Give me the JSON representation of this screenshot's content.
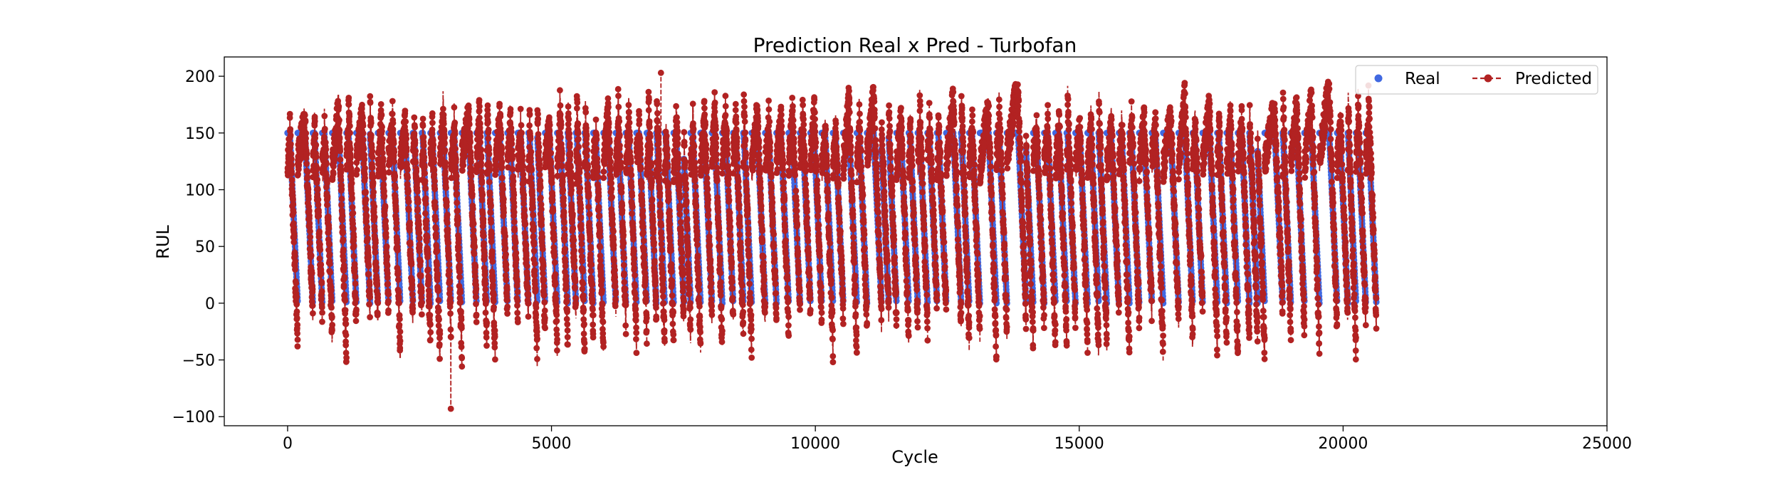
{
  "chart_data": {
    "type": "line",
    "title": "Prediction Real x Pred - Turbofan",
    "xlabel": "Cycle",
    "ylabel": "RUL",
    "xlim": [
      -1200,
      25000
    ],
    "ylim": [
      -108,
      217
    ],
    "xticks": [
      0,
      5000,
      10000,
      15000,
      20000,
      25000
    ],
    "xtick_labels": [
      "0",
      "5000",
      "10000",
      "15000",
      "20000",
      "25000"
    ],
    "yticks": [
      -100,
      -50,
      0,
      50,
      100,
      150,
      200
    ],
    "ytick_labels": [
      "−100",
      "−50",
      "0",
      "50",
      "100",
      "150",
      "200"
    ],
    "grid": false,
    "legend_position": "top-right",
    "series": [
      {
        "name": "Real",
        "style": "markers",
        "color": "#4169e1",
        "cap": 150,
        "unit_lengths": [
          192,
          287,
          179,
          189,
          269,
          188,
          259,
          150,
          201,
          222,
          240,
          170,
          163,
          180,
          207,
          209,
          276,
          195,
          158,
          234,
          195,
          202,
          168,
          147,
          230,
          199,
          156,
          165,
          163,
          194,
          234,
          191,
          200,
          195,
          181,
          158,
          170,
          194,
          128,
          188,
          216,
          196,
          207,
          192,
          158,
          256,
          214,
          231,
          215,
          198,
          213,
          213,
          195,
          257,
          193,
          275,
          137,
          147,
          231,
          172,
          185,
          180,
          174,
          283,
          153,
          202,
          313,
          199,
          362,
          137,
          208,
          213,
          213,
          166,
          229,
          210,
          154,
          231,
          199,
          185,
          240,
          214,
          293,
          267,
          188,
          278,
          178,
          213,
          217,
          154,
          135,
          341,
          155,
          258,
          283,
          336,
          202,
          156,
          185,
          200
        ]
      },
      {
        "name": "Predicted",
        "style": "dashed-line-markers",
        "color": "#b22222",
        "noise": 14,
        "annotated_extremes": {
          "min": -93,
          "max": 203
        }
      }
    ]
  }
}
